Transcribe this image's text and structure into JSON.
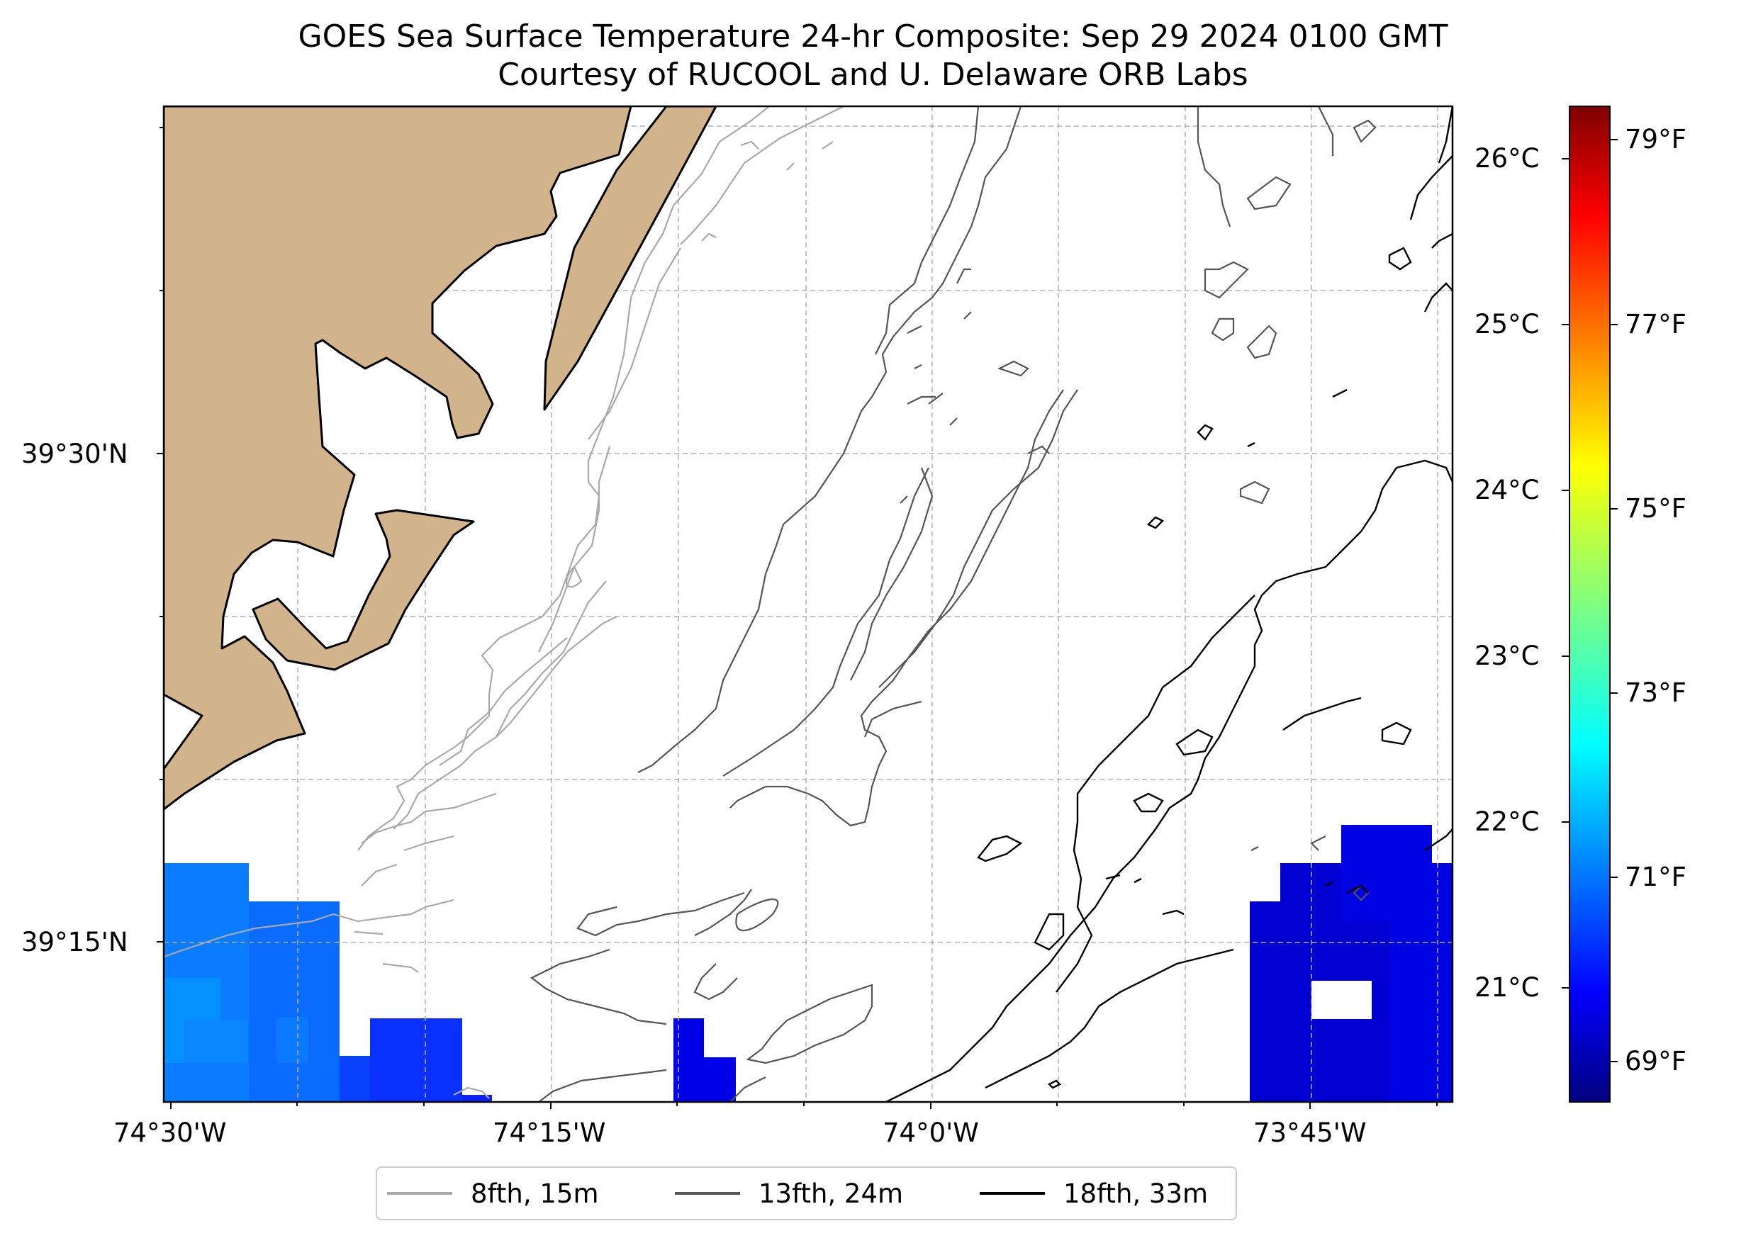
{
  "map": {
    "title_line1": "GOES Sea Surface Temperature 24-hr Composite: Sep 29 2024 0100 GMT",
    "title_line2": "Courtesy of RUCOOL and U. Delaware ORB Labs",
    "lon_labels": [
      "74°30'W",
      "74°15'W",
      "74°0'W",
      "73°45'W"
    ],
    "lat_labels": [
      "39°30'N",
      "39°15'N"
    ],
    "land_color": "#d2b48c",
    "legend": [
      {
        "label": "8fth, 15m",
        "color": "#a9a9a9"
      },
      {
        "label": "13fth, 24m",
        "color": "#555555"
      },
      {
        "label": "18fth, 33m",
        "color": "#000000"
      }
    ]
  },
  "colorbar": {
    "celsius_labels": [
      "26°C",
      "25°C",
      "24°C",
      "23°C",
      "22°C",
      "21°C"
    ],
    "fahrenheit_labels": [
      "79°F",
      "77°F",
      "75°F",
      "73°F",
      "71°F",
      "69°F"
    ],
    "colormap": "jet"
  },
  "sst_patches": {
    "southwest": "#0a6cff",
    "south_central": "#0000e0",
    "southeast": "#0000d0"
  }
}
